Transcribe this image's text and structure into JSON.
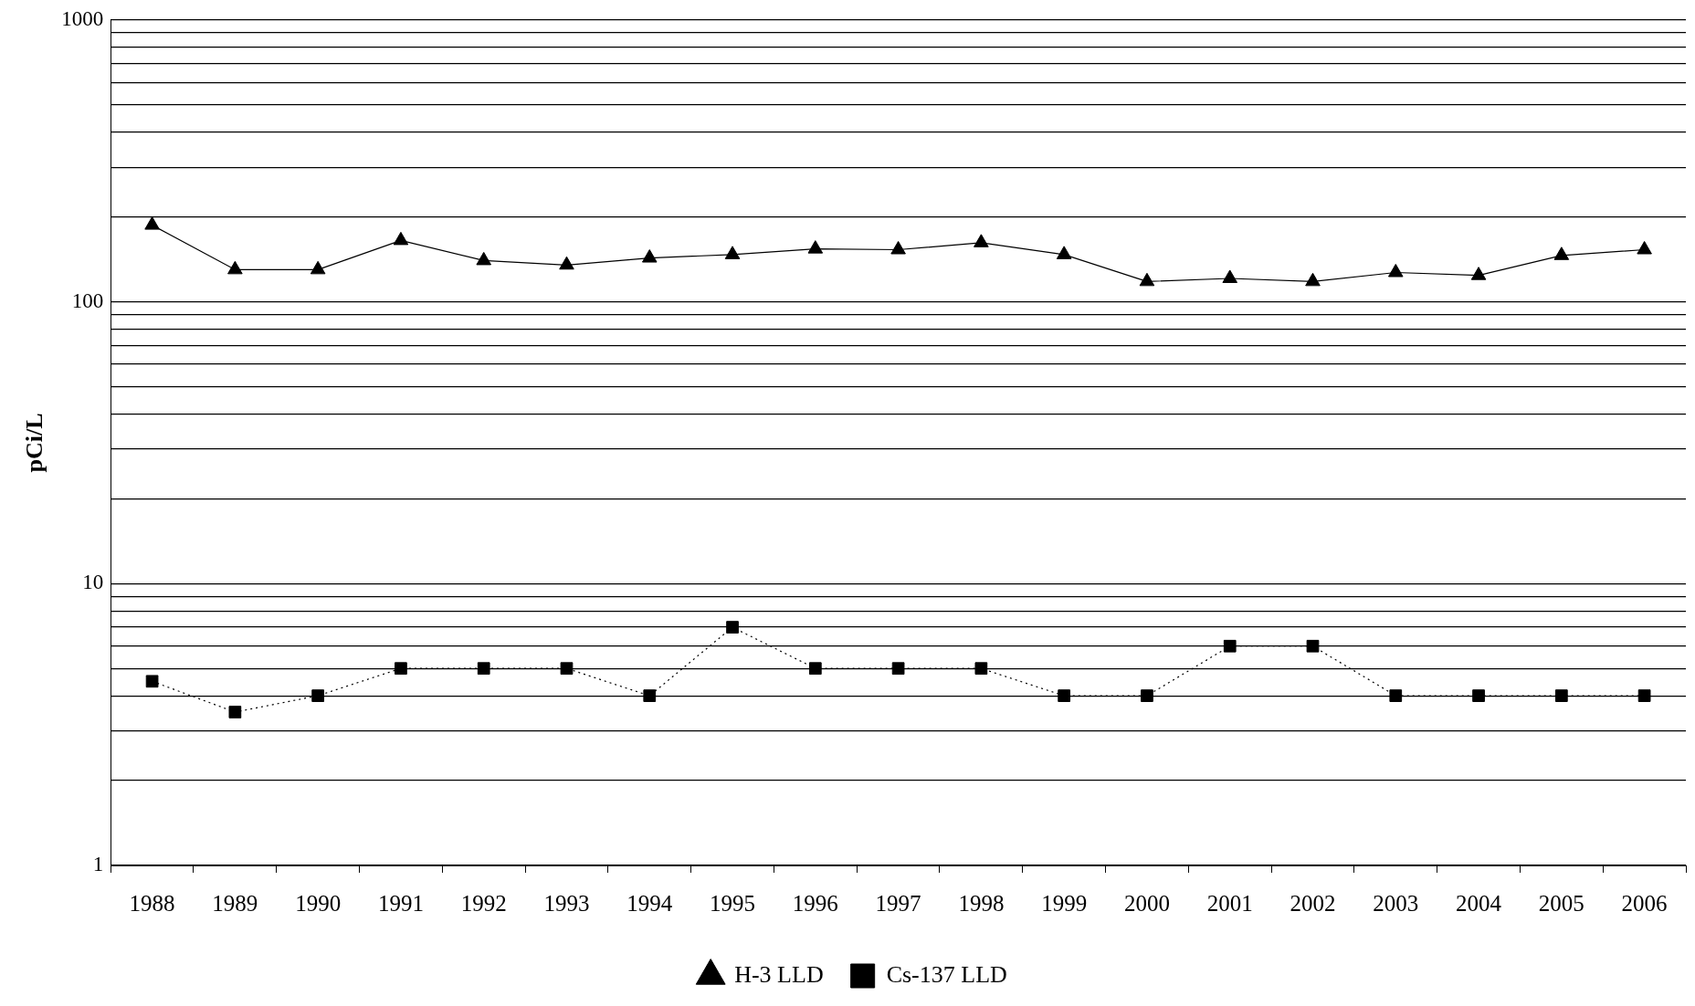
{
  "chart_data": {
    "type": "line",
    "ylabel": "pCi/L",
    "categories": [
      "1988",
      "1989",
      "1990",
      "1991",
      "1992",
      "1993",
      "1994",
      "1995",
      "1996",
      "1997",
      "1998",
      "1999",
      "2000",
      "2001",
      "2002",
      "2003",
      "2004",
      "2005",
      "2006"
    ],
    "series": [
      {
        "name": "H-3 LLD",
        "color": "#000000",
        "marker": "triangle",
        "line_style": "solid",
        "values": [
          187,
          130,
          130,
          165,
          140,
          135,
          143,
          147,
          154,
          153,
          162,
          147,
          118,
          121,
          118,
          127,
          124,
          146,
          153
        ]
      },
      {
        "name": "Cs-137 LLD",
        "color": "#000000",
        "marker": "square",
        "line_style": "dotted",
        "values": [
          4.5,
          3.5,
          4,
          5,
          5,
          5,
          4,
          7,
          5,
          5,
          5,
          4,
          4,
          6,
          6,
          4,
          4,
          4,
          4
        ]
      }
    ],
    "log": "y",
    "ylim": [
      1,
      1000
    ],
    "yticks": [
      1,
      {
        "value": 2,
        "label": null
      },
      {
        "value": 3,
        "label": null
      },
      {
        "value": 4,
        "label": null
      },
      {
        "value": 5,
        "label": null
      },
      {
        "value": 6,
        "label": null
      },
      {
        "value": 7,
        "label": null
      },
      {
        "value": 8,
        "label": null
      },
      {
        "value": 9,
        "label": null
      },
      10,
      {
        "value": 20,
        "label": null
      },
      {
        "value": 30,
        "label": null
      },
      {
        "value": 40,
        "label": null
      },
      {
        "value": 50,
        "label": null
      },
      {
        "value": 60,
        "label": null
      },
      {
        "value": 70,
        "label": null
      },
      {
        "value": 80,
        "label": null
      },
      {
        "value": 90,
        "label": null
      },
      100,
      {
        "value": 200,
        "label": null
      },
      {
        "value": 300,
        "label": null
      },
      {
        "value": 400,
        "label": null
      },
      {
        "value": 500,
        "label": null
      },
      {
        "value": 600,
        "label": null
      },
      {
        "value": 700,
        "label": null
      },
      {
        "value": 800,
        "label": null
      },
      {
        "value": 900,
        "label": null
      },
      1000
    ],
    "grid": "y",
    "legend": "bottom"
  }
}
